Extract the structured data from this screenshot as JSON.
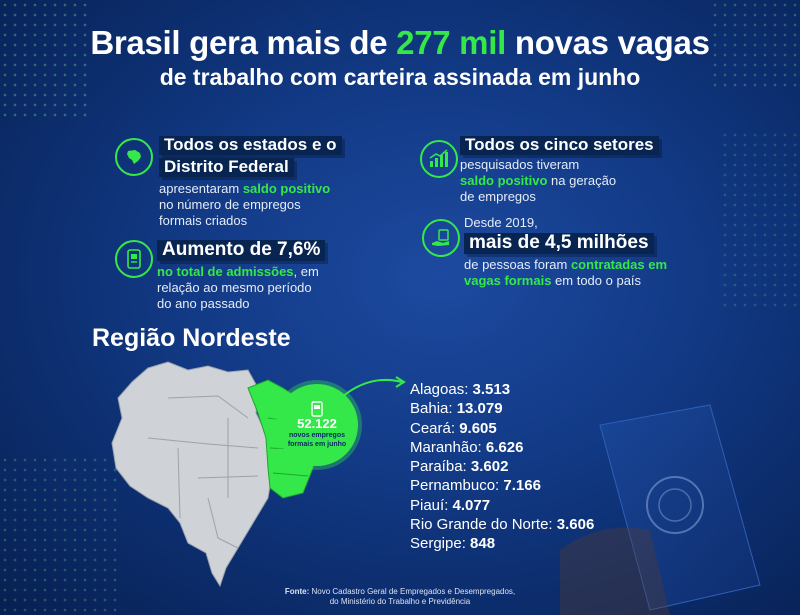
{
  "header": {
    "line1_before": "Brasil gera mais de ",
    "line1_highlight": "277 mil",
    "line1_after": " novas vagas",
    "line2": "de trabalho com carteira assinada em junho"
  },
  "cards": {
    "states": {
      "head1": "Todos os estados e o",
      "head2": "Distrito Federal",
      "t1": "apresentaram ",
      "t1_green": "saldo positivo",
      "t2": "no número de empregos",
      "t3": "formais criados"
    },
    "sectors": {
      "head": "Todos os cinco setores",
      "t1": "pesquisados tiveram",
      "t2_green": "saldo positivo",
      "t2": " na geração",
      "t3": "de empregos"
    },
    "admissions": {
      "head": "Aumento de 7,6%",
      "t1_green": "no total de admissões",
      "t1": ", em",
      "t2": "relação ao mesmo período",
      "t3": "do ano passado"
    },
    "millions": {
      "pre": "Desde 2019,",
      "head": "mais de 4,5 milhões",
      "t1": "de pessoas foram ",
      "t1_green": "contratadas em",
      "t2_green": "vagas formais",
      "t2": " em todo o país"
    }
  },
  "region": {
    "title": "Região Nordeste",
    "bubble_number": "52.122",
    "bubble_caption1": "novos empregos",
    "bubble_caption2": "formais em junho",
    "states": [
      {
        "name": "Alagoas: ",
        "value": "3.513"
      },
      {
        "name": "Bahia: ",
        "value": "13.079"
      },
      {
        "name": "Ceará: ",
        "value": "9.605"
      },
      {
        "name": "Maranhão: ",
        "value": "6.626"
      },
      {
        "name": "Paraíba: ",
        "value": "3.602"
      },
      {
        "name": "Pernambuco: ",
        "value": "7.166"
      },
      {
        "name": "Piauí: ",
        "value": "4.077"
      },
      {
        "name": "Rio Grande do Norte: ",
        "value": "3.606"
      },
      {
        "name": "Sergipe: ",
        "value": "848"
      }
    ]
  },
  "source": {
    "label": "Fonte:",
    "line1": " Novo Cadastro Geral de Empregados e Desempregados,",
    "line2": "do Ministério do Trabalho e Previdência"
  },
  "colors": {
    "accent": "#35e84a",
    "background": "#123a86",
    "map": "#cfd2d6"
  }
}
